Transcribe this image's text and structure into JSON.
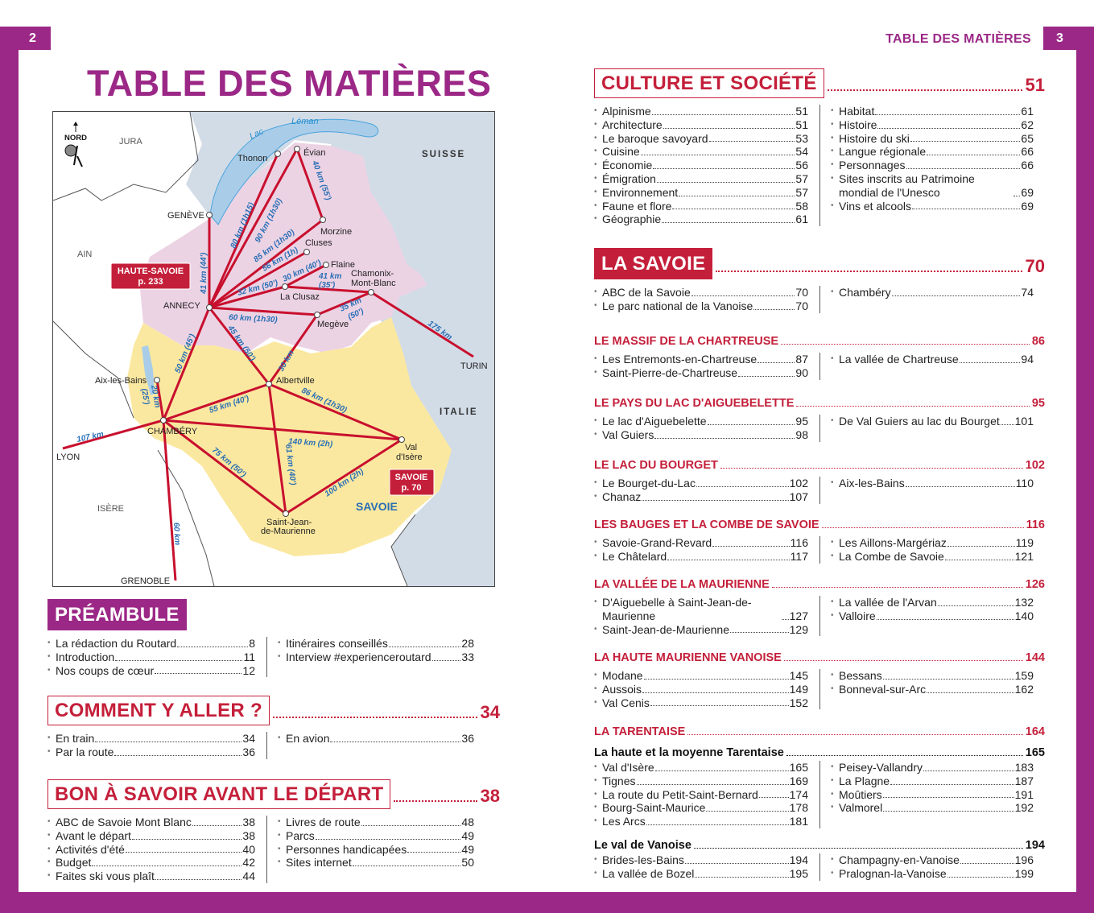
{
  "page_numbers": {
    "left": "2",
    "right": "3"
  },
  "running_header": "TABLE DES MATIÈRES",
  "title": "TABLE DES MATIÈRES",
  "colors": {
    "purple": "#9b2886",
    "red": "#c41f3a",
    "map_haute_savoie": "#ecd3e4",
    "map_savoie": "#fbe8a0",
    "map_foreign": "#d2dce7",
    "route": "#c8102e",
    "route_label": "#2a6fb5"
  },
  "map": {
    "compass": "NORD",
    "regions": {
      "jura": "JURA",
      "ain": "AIN",
      "isere": "ISÈRE",
      "suisse": "SUISSE",
      "italie": "ITALIE",
      "lake_line1": "Lac",
      "lake_line2": "Léman",
      "savoie": "SAVOIE"
    },
    "badges": {
      "haute_savoie": "HAUTE-SAVOIE",
      "haute_savoie_page": "p. 233",
      "savoie": "SAVOIE",
      "savoie_page": "p. 70"
    },
    "cities": {
      "thonon": "Thonon",
      "evian": "Évian",
      "geneve": "GENÈVE",
      "morzine": "Morzine",
      "cluses": "Cluses",
      "flaine": "Flaine",
      "chamonix1": "Chamonix-",
      "chamonix2": "Mont-Blanc",
      "laclusaz": "La Clusaz",
      "annecy": "ANNECY",
      "megeve": "Megève",
      "albertville": "Albertville",
      "aix": "Aix-les-Bains",
      "chambery": "CHAMBÉRY",
      "valdisere1": "Val",
      "valdisere2": "d'Isère",
      "stjean1": "Saint-Jean-",
      "stjean2": "de-Maurienne",
      "lyon": "LYON",
      "grenoble": "GRENOBLE",
      "turin": "TURIN"
    },
    "routes": {
      "annecy_geneve": "41 km (44')",
      "annecy_thonon": "80 km (1h15)",
      "annecy_evian": "90 km (1h30)",
      "evian_morzine": "40 km (55')",
      "annecy_morzine": "85 km (1h30)",
      "annecy_cluses": "56 km (1h)",
      "clusaz_flaine": "30 km (40')",
      "annecy_clusaz": "32 km (50')",
      "clusaz_chamonix1": "41 km",
      "clusaz_chamonix2": "(35')",
      "megeve_chamonix1": "35 km",
      "megeve_chamonix2": "(50')",
      "chamonix_turin": "175 km",
      "annecy_megeve": "60 km (1h30)",
      "annecy_albertville": "45 km (50')",
      "megeve_albertville": "30 km",
      "annecy_chambery": "50 km (45')",
      "aix_chambery1": "20 km",
      "aix_chambery2": "(25')",
      "chambery_albertville": "55 km (40')",
      "albertville_valdisere": "86 km (1h30)",
      "chambery_lyon": "107 km",
      "chambery_valdisere": "140 km (2h)",
      "chambery_stjean": "75 km (50')",
      "albertville_stjean": "61 km (40')",
      "stjean_valdisere": "100 km (2h)",
      "chambery_grenoble": "60 km"
    }
  },
  "sections": [
    {
      "title": "PRÉAMBULE",
      "style": "filled-purple",
      "page": "",
      "col1": [
        {
          "label": "La rédaction du Routard",
          "page": "8"
        },
        {
          "label": "Introduction",
          "page": "11"
        },
        {
          "label": "Nos coups de cœur",
          "page": "12"
        }
      ],
      "col2": [
        {
          "label": "Itinéraires conseillés",
          "page": "28"
        },
        {
          "label": "Interview #experienceroutard",
          "page": "33"
        }
      ]
    },
    {
      "title": "COMMENT Y ALLER ?",
      "style": "outline",
      "page": "34",
      "col1": [
        {
          "label": "En train",
          "page": "34"
        },
        {
          "label": "Par la route",
          "page": "36"
        }
      ],
      "col2": [
        {
          "label": "En avion",
          "page": "36"
        }
      ]
    },
    {
      "title": "BON À SAVOIR AVANT LE DÉPART",
      "style": "outline",
      "page": "38",
      "col1": [
        {
          "label": "ABC de Savoie Mont Blanc",
          "page": "38"
        },
        {
          "label": "Avant le départ",
          "page": "38"
        },
        {
          "label": "Activités d'été",
          "page": "40"
        },
        {
          "label": "Budget",
          "page": "42"
        },
        {
          "label": "Faites ski vous plaît",
          "page": "44"
        }
      ],
      "col2": [
        {
          "label": "Livres de route",
          "page": "48"
        },
        {
          "label": "Parcs",
          "page": "49"
        },
        {
          "label": "Personnes handicapées",
          "page": "49"
        },
        {
          "label": "Sites internet",
          "page": "50"
        }
      ]
    },
    {
      "title": "CULTURE ET SOCIÉTÉ",
      "style": "outline",
      "page": "51",
      "col1": [
        {
          "label": "Alpinisme",
          "page": "51"
        },
        {
          "label": "Architecture",
          "page": "51"
        },
        {
          "label": "Le baroque savoyard",
          "page": "53"
        },
        {
          "label": "Cuisine",
          "page": "54"
        },
        {
          "label": "Économie",
          "page": "56"
        },
        {
          "label": "Émigration",
          "page": "57"
        },
        {
          "label": "Environnement",
          "page": "57"
        },
        {
          "label": "Faune et flore",
          "page": "58"
        },
        {
          "label": "Géographie",
          "page": "61"
        }
      ],
      "col2": [
        {
          "label": "Habitat",
          "page": "61"
        },
        {
          "label": "Histoire",
          "page": "62"
        },
        {
          "label": "Histoire du ski",
          "page": "65"
        },
        {
          "label": "Langue régionale",
          "page": "66"
        },
        {
          "label": "Personnages",
          "page": "66"
        },
        {
          "label": "Sites inscrits au Patrimoine mondial de l'Unesco",
          "page": "69"
        },
        {
          "label": "Vins et alcools",
          "page": "69"
        }
      ]
    },
    {
      "title": "LA SAVOIE",
      "style": "filled-red",
      "page": "70",
      "col1": [
        {
          "label": "ABC de la Savoie",
          "page": "70"
        },
        {
          "label": "Le parc national de la Vanoise",
          "page": "70"
        }
      ],
      "col2": [
        {
          "label": "Chambéry",
          "page": "74"
        }
      ]
    },
    {
      "title": "LE MASSIF DE LA CHARTREUSE",
      "style": "sub-red",
      "page": "86",
      "col1": [
        {
          "label": "Les Entremonts-en-Chartreuse",
          "page": "87"
        },
        {
          "label": "Saint-Pierre-de-Chartreuse",
          "page": "90"
        }
      ],
      "col2": [
        {
          "label": "La vallée de Chartreuse",
          "page": "94"
        }
      ]
    },
    {
      "title": "LE PAYS DU LAC D'AIGUEBELETTE",
      "style": "sub-red",
      "page": "95",
      "col1": [
        {
          "label": "Le lac d'Aiguebelette",
          "page": "95"
        },
        {
          "label": "Val Guiers",
          "page": "98"
        }
      ],
      "col2": [
        {
          "label": "De Val Guiers au lac du Bourget",
          "page": "101"
        }
      ]
    },
    {
      "title": "LE LAC DU BOURGET",
      "style": "sub-red",
      "page": "102",
      "col1": [
        {
          "label": "Le Bourget-du-Lac",
          "page": "102"
        },
        {
          "label": "Chanaz",
          "page": "107"
        }
      ],
      "col2": [
        {
          "label": "Aix-les-Bains",
          "page": "110"
        }
      ]
    },
    {
      "title": "LES BAUGES ET LA COMBE DE SAVOIE",
      "style": "sub-red",
      "page": "116",
      "col1": [
        {
          "label": "Savoie-Grand-Revard",
          "page": "116"
        },
        {
          "label": "Le Châtelard",
          "page": "117"
        }
      ],
      "col2": [
        {
          "label": "Les Aillons-Margériaz",
          "page": "119"
        },
        {
          "label": "La Combe de Savoie",
          "page": "121"
        }
      ]
    },
    {
      "title": "LA VALLÉE DE LA MAURIENNE",
      "style": "sub-red",
      "page": "126",
      "col1": [
        {
          "label": "D'Aiguebelle à Saint-Jean-de-Maurienne",
          "page": "127"
        },
        {
          "label": "Saint-Jean-de-Maurienne",
          "page": "129"
        }
      ],
      "col2": [
        {
          "label": "La vallée de l'Arvan",
          "page": "132"
        },
        {
          "label": "Valloire",
          "page": "140"
        }
      ]
    },
    {
      "title": "LA HAUTE MAURIENNE VANOISE",
      "style": "sub-red",
      "page": "144",
      "col1": [
        {
          "label": "Modane",
          "page": "145"
        },
        {
          "label": "Aussois",
          "page": "149"
        },
        {
          "label": "Val Cenis",
          "page": "152"
        }
      ],
      "col2": [
        {
          "label": "Bessans",
          "page": "159"
        },
        {
          "label": "Bonneval-sur-Arc",
          "page": "162"
        }
      ]
    },
    {
      "title": "LA TARENTAISE",
      "style": "sub-red",
      "page": "164",
      "col1": [],
      "col2": []
    },
    {
      "title": "La haute et la moyenne Tarentaise",
      "style": "sub-black",
      "page": "165",
      "col1": [
        {
          "label": "Val d'Isère",
          "page": "165"
        },
        {
          "label": "Tignes",
          "page": "169"
        },
        {
          "label": "La route du Petit-Saint-Bernard",
          "page": "174"
        },
        {
          "label": "Bourg-Saint-Maurice",
          "page": "178"
        },
        {
          "label": "Les Arcs",
          "page": "181"
        }
      ],
      "col2": [
        {
          "label": "Peisey-Vallandry",
          "page": "183"
        },
        {
          "label": "La Plagne",
          "page": "187"
        },
        {
          "label": "Moûtiers",
          "page": "191"
        },
        {
          "label": "Valmorel",
          "page": "192"
        }
      ]
    },
    {
      "title": "Le val de Vanoise",
      "style": "sub-black",
      "page": "194",
      "col1": [
        {
          "label": "Brides-les-Bains",
          "page": "194"
        },
        {
          "label": "La vallée de Bozel",
          "page": "195"
        }
      ],
      "col2": [
        {
          "label": "Champagny-en-Vanoise",
          "page": "196"
        },
        {
          "label": "Pralognan-la-Vanoise",
          "page": "199"
        }
      ]
    }
  ]
}
